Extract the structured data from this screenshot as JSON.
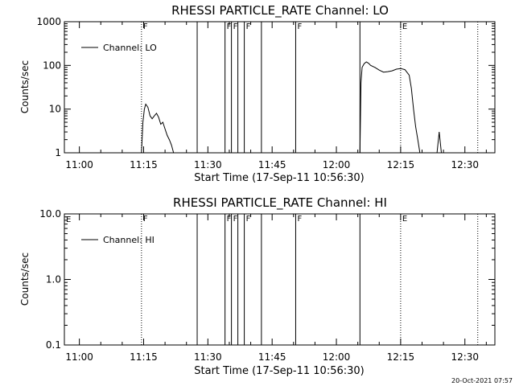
{
  "chart_data": [
    {
      "type": "line",
      "title": "RHESSI PARTICLE_RATE Channel: LO",
      "xlabel": "Start Time (17-Sep-11 10:56:30)",
      "ylabel": "Counts/sec",
      "yscale": "log",
      "xlim": [
        "10:56:30",
        "12:37:00"
      ],
      "ylim": [
        1,
        1000
      ],
      "x_ticks": [
        "11:00",
        "11:15",
        "11:30",
        "11:45",
        "12:00",
        "12:15",
        "12:30"
      ],
      "y_ticks": [
        "1",
        "10",
        "100",
        "1000"
      ],
      "legend": {
        "entries": [
          "Channel: LO"
        ],
        "placement": "top-left"
      },
      "flag_lines": [
        {
          "time": "11:14:30",
          "style": "dotted",
          "label": "F"
        },
        {
          "time": "11:27:30",
          "style": "solid",
          "label": ""
        },
        {
          "time": "11:34:00",
          "style": "solid",
          "label": "F"
        },
        {
          "time": "11:35:30",
          "style": "solid",
          "label": "F"
        },
        {
          "time": "11:37:00",
          "style": "solid",
          "label": ""
        },
        {
          "time": "11:38:30",
          "style": "solid",
          "label": "F"
        },
        {
          "time": "11:42:30",
          "style": "solid",
          "label": ""
        },
        {
          "time": "11:50:30",
          "style": "solid",
          "label": "F"
        },
        {
          "time": "12:05:30",
          "style": "solid",
          "label": ""
        },
        {
          "time": "12:15:00",
          "style": "dotted",
          "label": "E"
        },
        {
          "time": "12:33:00",
          "style": "dotted",
          "label": ""
        }
      ],
      "series": [
        {
          "name": "Channel: LO",
          "segments": [
            {
              "x": [
                "11:14:30",
                "11:14:50",
                "11:15:10",
                "11:15:30",
                "11:16:00",
                "11:16:30",
                "11:17:00",
                "11:17:30",
                "11:18:00",
                "11:18:30",
                "11:19:00",
                "11:19:30",
                "11:20:00",
                "11:20:30",
                "11:21:00",
                "11:21:30",
                "11:22:00"
              ],
              "y": [
                1,
                5,
                10,
                13,
                11,
                7,
                6,
                7,
                8,
                6.5,
                4.5,
                5,
                3.5,
                2.5,
                2,
                1.5,
                1
              ]
            },
            {
              "x": [
                "12:05:30",
                "12:05:45",
                "12:06:00",
                "12:06:30",
                "12:07:00",
                "12:07:30",
                "12:08:00",
                "12:09:00",
                "12:10:00",
                "12:11:00",
                "12:12:00",
                "12:13:00",
                "12:14:00",
                "12:15:00",
                "12:16:00",
                "12:17:00",
                "12:17:30",
                "12:18:00",
                "12:18:30",
                "12:19:00",
                "12:19:30"
              ],
              "y": [
                1,
                40,
                90,
                110,
                120,
                112,
                100,
                90,
                78,
                70,
                72,
                75,
                82,
                85,
                80,
                60,
                30,
                10,
                4,
                2,
                1
              ]
            },
            {
              "x": [
                "12:23:30",
                "12:24:00",
                "12:24:30"
              ],
              "y": [
                1,
                3,
                1
              ]
            }
          ]
        }
      ]
    },
    {
      "type": "line",
      "title": "RHESSI PARTICLE_RATE Channel: HI",
      "xlabel": "Start Time (17-Sep-11 10:56:30)",
      "ylabel": "Counts/sec",
      "yscale": "log",
      "xlim": [
        "10:56:30",
        "12:37:00"
      ],
      "ylim": [
        0.1,
        10
      ],
      "x_ticks": [
        "11:00",
        "11:15",
        "11:30",
        "11:45",
        "12:00",
        "12:15",
        "12:30"
      ],
      "y_ticks": [
        "0.1",
        "1.0",
        "10.0"
      ],
      "legend": {
        "entries": [
          "Channel: HI"
        ],
        "placement": "top-left"
      },
      "top_left_label": "E",
      "flag_lines": [
        {
          "time": "11:14:30",
          "style": "dotted",
          "label": "F"
        },
        {
          "time": "11:27:30",
          "style": "solid",
          "label": ""
        },
        {
          "time": "11:34:00",
          "style": "solid",
          "label": "F"
        },
        {
          "time": "11:35:30",
          "style": "solid",
          "label": "F"
        },
        {
          "time": "11:37:00",
          "style": "solid",
          "label": ""
        },
        {
          "time": "11:38:30",
          "style": "solid",
          "label": "F"
        },
        {
          "time": "11:42:30",
          "style": "solid",
          "label": ""
        },
        {
          "time": "11:50:30",
          "style": "solid",
          "label": "F"
        },
        {
          "time": "12:05:30",
          "style": "solid",
          "label": ""
        },
        {
          "time": "12:15:00",
          "style": "dotted",
          "label": "E"
        },
        {
          "time": "12:33:00",
          "style": "dotted",
          "label": ""
        }
      ],
      "series": [
        {
          "name": "Channel: HI",
          "segments": []
        }
      ]
    }
  ],
  "footer": {
    "timestamp": "20-Oct-2021 07:57"
  }
}
